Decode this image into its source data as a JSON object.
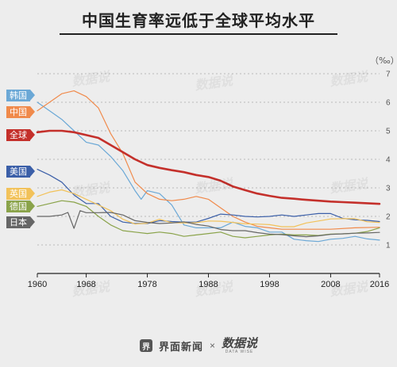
{
  "title": "中国生育率远低于全球平均水平",
  "footer": {
    "brand_icon": "jiemian-logo-icon",
    "brand": "界面新闻",
    "separator": "×",
    "partner": "数据说",
    "partner_en": "DATA WISE"
  },
  "chart_data": {
    "type": "line",
    "unit_label": "（‰）",
    "x_ticks": [
      1960,
      1968,
      1978,
      1988,
      1998,
      2008,
      2016
    ],
    "y_ticks": [
      1,
      2,
      3,
      4,
      5,
      6,
      7
    ],
    "xlim": [
      1960,
      2016
    ],
    "ylim": [
      0,
      7
    ],
    "grid": "horizontal dashed",
    "legend_placement": "left",
    "series": [
      {
        "name": "韩国",
        "color": "#6ba8d6",
        "width": 1.2,
        "points": [
          [
            1960,
            6.0
          ],
          [
            1962,
            5.7
          ],
          [
            1964,
            5.4
          ],
          [
            1966,
            5.0
          ],
          [
            1968,
            4.6
          ],
          [
            1970,
            4.5
          ],
          [
            1972,
            4.1
          ],
          [
            1974,
            3.6
          ],
          [
            1976,
            2.9
          ],
          [
            1977,
            2.6
          ],
          [
            1978,
            2.9
          ],
          [
            1980,
            2.8
          ],
          [
            1982,
            2.4
          ],
          [
            1984,
            1.7
          ],
          [
            1986,
            1.6
          ],
          [
            1988,
            1.6
          ],
          [
            1990,
            1.6
          ],
          [
            1992,
            1.8
          ],
          [
            1994,
            1.65
          ],
          [
            1996,
            1.6
          ],
          [
            1998,
            1.45
          ],
          [
            2000,
            1.45
          ],
          [
            2002,
            1.2
          ],
          [
            2004,
            1.15
          ],
          [
            2006,
            1.12
          ],
          [
            2008,
            1.2
          ],
          [
            2010,
            1.23
          ],
          [
            2012,
            1.3
          ],
          [
            2014,
            1.21
          ],
          [
            2016,
            1.17
          ]
        ]
      },
      {
        "name": "中国",
        "color": "#f08a4b",
        "width": 1.2,
        "points": [
          [
            1960,
            5.7
          ],
          [
            1962,
            6.0
          ],
          [
            1964,
            6.3
          ],
          [
            1966,
            6.4
          ],
          [
            1968,
            6.2
          ],
          [
            1970,
            5.8
          ],
          [
            1972,
            4.9
          ],
          [
            1974,
            4.2
          ],
          [
            1976,
            3.2
          ],
          [
            1978,
            2.8
          ],
          [
            1980,
            2.6
          ],
          [
            1982,
            2.55
          ],
          [
            1984,
            2.6
          ],
          [
            1986,
            2.7
          ],
          [
            1988,
            2.6
          ],
          [
            1990,
            2.3
          ],
          [
            1992,
            2.0
          ],
          [
            1994,
            1.8
          ],
          [
            1996,
            1.65
          ],
          [
            1998,
            1.6
          ],
          [
            2000,
            1.55
          ],
          [
            2004,
            1.55
          ],
          [
            2008,
            1.55
          ],
          [
            2012,
            1.6
          ],
          [
            2016,
            1.62
          ]
        ]
      },
      {
        "name": "全球",
        "color": "#c4302b",
        "width": 2.6,
        "points": [
          [
            1960,
            4.95
          ],
          [
            1962,
            5.0
          ],
          [
            1964,
            5.0
          ],
          [
            1966,
            4.95
          ],
          [
            1968,
            4.85
          ],
          [
            1970,
            4.75
          ],
          [
            1972,
            4.5
          ],
          [
            1974,
            4.25
          ],
          [
            1976,
            4.0
          ],
          [
            1978,
            3.8
          ],
          [
            1980,
            3.7
          ],
          [
            1982,
            3.62
          ],
          [
            1984,
            3.55
          ],
          [
            1986,
            3.45
          ],
          [
            1988,
            3.38
          ],
          [
            1990,
            3.25
          ],
          [
            1992,
            3.05
          ],
          [
            1994,
            2.92
          ],
          [
            1996,
            2.8
          ],
          [
            1998,
            2.72
          ],
          [
            2000,
            2.65
          ],
          [
            2002,
            2.62
          ],
          [
            2004,
            2.58
          ],
          [
            2006,
            2.55
          ],
          [
            2008,
            2.52
          ],
          [
            2010,
            2.5
          ],
          [
            2012,
            2.48
          ],
          [
            2014,
            2.46
          ],
          [
            2016,
            2.44
          ]
        ]
      },
      {
        "name": "美国",
        "color": "#3b5fa8",
        "width": 1.2,
        "points": [
          [
            1960,
            3.65
          ],
          [
            1962,
            3.45
          ],
          [
            1964,
            3.2
          ],
          [
            1966,
            2.75
          ],
          [
            1968,
            2.45
          ],
          [
            1970,
            2.45
          ],
          [
            1972,
            2.0
          ],
          [
            1974,
            1.8
          ],
          [
            1976,
            1.75
          ],
          [
            1978,
            1.75
          ],
          [
            1980,
            1.85
          ],
          [
            1982,
            1.82
          ],
          [
            1984,
            1.8
          ],
          [
            1986,
            1.8
          ],
          [
            1988,
            1.93
          ],
          [
            1990,
            2.08
          ],
          [
            1992,
            2.05
          ],
          [
            1994,
            2.0
          ],
          [
            1996,
            1.98
          ],
          [
            1998,
            2.0
          ],
          [
            2000,
            2.05
          ],
          [
            2002,
            2.0
          ],
          [
            2004,
            2.05
          ],
          [
            2006,
            2.1
          ],
          [
            2008,
            2.1
          ],
          [
            2010,
            1.93
          ],
          [
            2012,
            1.88
          ],
          [
            2014,
            1.86
          ],
          [
            2016,
            1.82
          ]
        ]
      },
      {
        "name": "英国",
        "color": "#f2c25a",
        "width": 1.2,
        "points": [
          [
            1960,
            2.7
          ],
          [
            1962,
            2.85
          ],
          [
            1964,
            2.93
          ],
          [
            1966,
            2.8
          ],
          [
            1968,
            2.6
          ],
          [
            1970,
            2.4
          ],
          [
            1972,
            2.2
          ],
          [
            1974,
            1.9
          ],
          [
            1976,
            1.73
          ],
          [
            1978,
            1.76
          ],
          [
            1980,
            1.9
          ],
          [
            1982,
            1.78
          ],
          [
            1984,
            1.77
          ],
          [
            1986,
            1.78
          ],
          [
            1988,
            1.84
          ],
          [
            1990,
            1.83
          ],
          [
            1992,
            1.79
          ],
          [
            1994,
            1.74
          ],
          [
            1996,
            1.73
          ],
          [
            1998,
            1.71
          ],
          [
            2000,
            1.64
          ],
          [
            2002,
            1.64
          ],
          [
            2004,
            1.77
          ],
          [
            2006,
            1.84
          ],
          [
            2008,
            1.91
          ],
          [
            2010,
            1.92
          ],
          [
            2012,
            1.92
          ],
          [
            2014,
            1.81
          ],
          [
            2016,
            1.79
          ]
        ]
      },
      {
        "name": "德国",
        "color": "#8aa34a",
        "width": 1.2,
        "points": [
          [
            1960,
            2.35
          ],
          [
            1962,
            2.45
          ],
          [
            1964,
            2.55
          ],
          [
            1966,
            2.5
          ],
          [
            1968,
            2.35
          ],
          [
            1970,
            2.0
          ],
          [
            1972,
            1.7
          ],
          [
            1974,
            1.5
          ],
          [
            1976,
            1.45
          ],
          [
            1978,
            1.4
          ],
          [
            1980,
            1.45
          ],
          [
            1982,
            1.4
          ],
          [
            1984,
            1.3
          ],
          [
            1986,
            1.35
          ],
          [
            1988,
            1.4
          ],
          [
            1990,
            1.45
          ],
          [
            1992,
            1.3
          ],
          [
            1994,
            1.25
          ],
          [
            1996,
            1.3
          ],
          [
            1998,
            1.35
          ],
          [
            2000,
            1.38
          ],
          [
            2002,
            1.35
          ],
          [
            2004,
            1.35
          ],
          [
            2006,
            1.33
          ],
          [
            2008,
            1.38
          ],
          [
            2010,
            1.39
          ],
          [
            2012,
            1.41
          ],
          [
            2014,
            1.47
          ],
          [
            2016,
            1.6
          ]
        ]
      },
      {
        "name": "日本",
        "color": "#666666",
        "width": 1.2,
        "points": [
          [
            1960,
            2.0
          ],
          [
            1962,
            2.0
          ],
          [
            1964,
            2.05
          ],
          [
            1965,
            2.14
          ],
          [
            1966,
            1.58
          ],
          [
            1967,
            2.2
          ],
          [
            1968,
            2.13
          ],
          [
            1970,
            2.13
          ],
          [
            1972,
            2.14
          ],
          [
            1974,
            2.05
          ],
          [
            1976,
            1.85
          ],
          [
            1978,
            1.79
          ],
          [
            1980,
            1.75
          ],
          [
            1982,
            1.77
          ],
          [
            1984,
            1.81
          ],
          [
            1986,
            1.72
          ],
          [
            1988,
            1.66
          ],
          [
            1990,
            1.54
          ],
          [
            1992,
            1.5
          ],
          [
            1994,
            1.5
          ],
          [
            1996,
            1.43
          ],
          [
            1998,
            1.38
          ],
          [
            2000,
            1.36
          ],
          [
            2002,
            1.32
          ],
          [
            2004,
            1.29
          ],
          [
            2006,
            1.32
          ],
          [
            2008,
            1.37
          ],
          [
            2010,
            1.39
          ],
          [
            2012,
            1.41
          ],
          [
            2014,
            1.42
          ],
          [
            2016,
            1.44
          ]
        ]
      }
    ],
    "legend": [
      {
        "name": "韩国",
        "color": "#6ba8d6"
      },
      {
        "name": "中国",
        "color": "#f08a4b"
      },
      {
        "name": "全球",
        "color": "#c4302b"
      },
      {
        "name": "美国",
        "color": "#3b5fa8"
      },
      {
        "name": "英国",
        "color": "#f2c25a"
      },
      {
        "name": "德国",
        "color": "#8aa34a"
      },
      {
        "name": "日本",
        "color": "#666666"
      }
    ]
  }
}
